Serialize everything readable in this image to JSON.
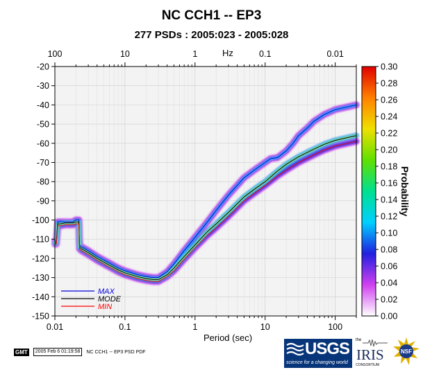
{
  "header": {
    "title": "NC CCH1 -- EP3",
    "subtitle": "277 PSDs : 2005:023 - 2005:028"
  },
  "footer": {
    "gmt_label": "GMT",
    "timestamp": "2005 Feb  6 01:19:58",
    "plot_label": "NC CCH1 -- EP3 PSD PDF"
  },
  "logos": {
    "usgs_text": "USGS",
    "usgs_tagline": "science for a changing world",
    "iris_small": "the",
    "iris_text": "IRIS",
    "iris_sub": "CONSORTIUM",
    "nsf_text": "NSF"
  },
  "chart_data": {
    "type": "line",
    "title": "NC CCH1 -- EP3",
    "subtitle": "277 PSDs : 2005:023 - 2005:028",
    "xlabel": "Period (sec)",
    "x_scale": "log",
    "xlim": [
      0.01,
      200
    ],
    "x_ticks": [
      0.01,
      0.1,
      1,
      10,
      100
    ],
    "x_tick_labels": [
      "0.01",
      "0.1",
      "1",
      "10",
      "100"
    ],
    "top_axis_label": "Hz",
    "top_ticks_hz": [
      100,
      10,
      1,
      0.1,
      0.01
    ],
    "top_tick_labels": [
      "100",
      "10",
      "1",
      "0.1",
      "0.01"
    ],
    "ylim": [
      -150,
      -20
    ],
    "y_ticks": [
      -20,
      -30,
      -40,
      -50,
      -60,
      -70,
      -80,
      -90,
      -100,
      -110,
      -120,
      -130,
      -140,
      -150
    ],
    "grid": true,
    "colorbar": {
      "label": "Probability",
      "range": [
        0,
        0.3
      ],
      "ticks": [
        "0.00",
        "0.02",
        "0.04",
        "0.06",
        "0.08",
        "0.10",
        "0.12",
        "0.14",
        "0.16",
        "0.18",
        "0.20",
        "0.22",
        "0.24",
        "0.26",
        "0.28",
        "0.30"
      ],
      "colors": [
        "#ffffff",
        "#d040f0",
        "#2020e0",
        "#00d0ff",
        "#00e090",
        "#60e000",
        "#f0e000",
        "#ff8000",
        "#e00000"
      ]
    },
    "legend_position": "bottom-left",
    "series": [
      {
        "name": "MAX",
        "color": "#0000dd",
        "x": [
          0.01,
          0.0105,
          0.011,
          0.012,
          0.014,
          0.016,
          0.018,
          0.02,
          0.022,
          0.0225,
          0.024,
          0.03,
          0.04,
          0.06,
          0.08,
          0.1,
          0.15,
          0.2,
          0.25,
          0.3,
          0.4,
          0.5,
          0.7,
          1,
          1.5,
          2,
          3,
          5,
          7,
          10,
          12,
          15,
          20,
          25,
          30,
          40,
          50,
          70,
          100,
          150,
          200
        ],
        "y": [
          -111,
          -111,
          -101,
          -101,
          -101,
          -101,
          -101,
          -100,
          -100,
          -113,
          -114,
          -116,
          -119,
          -122.5,
          -125,
          -126.5,
          -128.5,
          -129.5,
          -130,
          -130,
          -127,
          -123,
          -116,
          -109,
          -101,
          -95,
          -87,
          -78,
          -74,
          -70,
          -68,
          -67.5,
          -64,
          -60,
          -56,
          -52,
          -48.5,
          -45,
          -42.5,
          -41,
          -40
        ]
      },
      {
        "name": "MODE",
        "color": "#000000",
        "x": [
          0.01,
          0.0105,
          0.011,
          0.012,
          0.014,
          0.016,
          0.018,
          0.02,
          0.022,
          0.0225,
          0.024,
          0.03,
          0.04,
          0.06,
          0.08,
          0.1,
          0.15,
          0.2,
          0.25,
          0.3,
          0.4,
          0.5,
          0.7,
          1,
          1.5,
          2,
          3,
          5,
          7,
          10,
          15,
          20,
          30,
          50,
          70,
          100,
          150,
          200
        ],
        "y": [
          -112,
          -112,
          -102,
          -102,
          -101.5,
          -101.5,
          -101.5,
          -101,
          -101,
          -114,
          -115,
          -117,
          -120,
          -123.5,
          -126,
          -127.5,
          -129.5,
          -130.5,
          -131,
          -131,
          -128.5,
          -125,
          -119,
          -113,
          -106,
          -102,
          -96,
          -88,
          -84,
          -80,
          -74.5,
          -71,
          -67,
          -63,
          -60.5,
          -58.5,
          -57,
          -56
        ]
      },
      {
        "name": "MIN",
        "color": "#ff0000",
        "x": [
          0.01,
          0.0105,
          0.011,
          0.012,
          0.014,
          0.016,
          0.018,
          0.02,
          0.022,
          0.0225,
          0.024,
          0.03,
          0.04,
          0.06,
          0.08,
          0.1,
          0.15,
          0.2,
          0.25,
          0.3,
          0.4,
          0.5,
          0.7,
          1,
          1.5,
          2,
          3,
          5,
          7,
          10,
          15,
          20,
          30,
          50,
          70,
          100,
          150,
          200
        ],
        "y": [
          -112.5,
          -112.5,
          -103,
          -103,
          -102.5,
          -102.5,
          -102.5,
          -102,
          -102,
          -115,
          -116,
          -118,
          -121,
          -124.5,
          -127,
          -128.5,
          -130.5,
          -131.5,
          -132,
          -132,
          -129.5,
          -126.5,
          -120.5,
          -114.5,
          -108,
          -104,
          -98,
          -90,
          -86,
          -82,
          -77,
          -74,
          -70,
          -66,
          -63.5,
          -61.5,
          -60,
          -59
        ]
      }
    ]
  }
}
